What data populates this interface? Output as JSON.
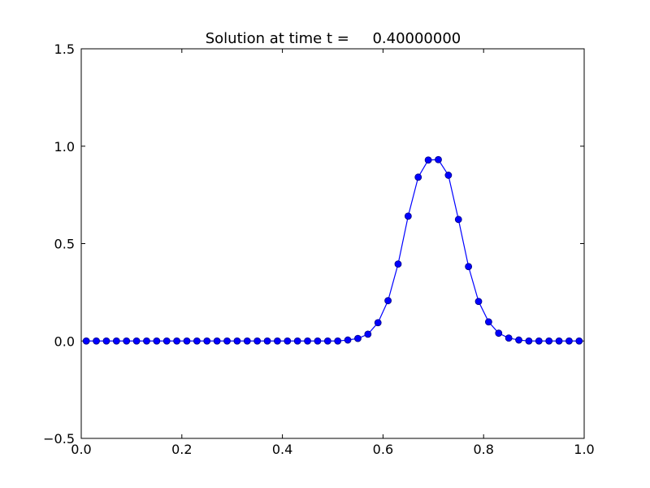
{
  "chart_data": {
    "type": "line",
    "title": "Solution at time t =     0.40000000",
    "x": [
      0.01,
      0.03,
      0.05,
      0.07,
      0.09,
      0.11,
      0.13,
      0.15,
      0.17,
      0.19,
      0.21,
      0.23,
      0.25,
      0.27,
      0.29,
      0.31,
      0.33,
      0.35,
      0.37,
      0.39,
      0.41,
      0.43,
      0.45,
      0.47,
      0.49,
      0.51,
      0.53,
      0.55,
      0.57,
      0.59,
      0.61,
      0.63,
      0.65,
      0.67,
      0.69,
      0.71,
      0.73,
      0.75,
      0.77,
      0.79,
      0.81,
      0.83,
      0.85,
      0.87,
      0.89,
      0.91,
      0.93,
      0.95,
      0.97,
      0.99
    ],
    "series": [
      {
        "color": "#0000ff",
        "values": [
          0,
          0,
          0,
          0,
          0,
          0,
          0,
          0,
          0,
          0,
          0,
          0,
          0,
          0,
          0,
          0,
          0,
          0,
          0,
          0,
          0,
          0,
          0,
          0,
          0,
          0,
          0.005,
          0.013,
          0.035,
          0.094,
          0.207,
          0.395,
          0.641,
          0.841,
          0.929,
          0.931,
          0.851,
          0.624,
          0.382,
          0.203,
          0.098,
          0.04,
          0.015,
          0.005,
          0,
          0,
          0,
          0,
          0,
          0
        ]
      }
    ],
    "xlim": [
      0,
      1
    ],
    "ylim": [
      -0.5,
      1.5
    ],
    "xticks": [
      {
        "value": 0,
        "label": "0.0"
      },
      0.2,
      0.4,
      0.6,
      0.8,
      {
        "value": 1,
        "label": "1.0"
      }
    ],
    "yticks": [
      {
        "value": -0.5,
        "label": "−0.5"
      },
      {
        "value": 0,
        "label": "0.0"
      },
      0.5,
      {
        "value": 1,
        "label": "1.0"
      },
      {
        "value": 1.5,
        "label": "1.5"
      }
    ],
    "grid": false
  }
}
